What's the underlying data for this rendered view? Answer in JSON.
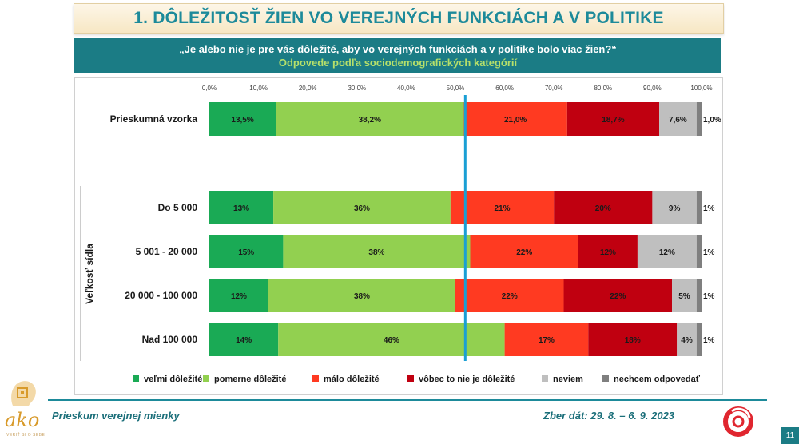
{
  "header": {
    "title": "1. DÔLEŽITOSŤ ŽIEN VO VEREJNÝCH FUNKCIÁCH A V POLITIKE",
    "question": "„Je alebo nie je pre vás dôležité, aby vo verejných funkciách a v politike bolo viac žien?“",
    "subtitle": "Odpovede podľa sociodemografických kategórií"
  },
  "footer": {
    "left": "Prieskum verejnej mienky",
    "right": "Zber dát: 29. 8. – 6. 9. 2023",
    "page": "11",
    "logo_text": "ako",
    "logo_sub": "VERIŤ SI O SEBE"
  },
  "colors": {
    "teal": "#1b7c85",
    "marker": "#1a9fd4"
  },
  "chart_data": {
    "type": "bar",
    "orientation": "horizontal",
    "stacked": true,
    "xlim": [
      0,
      100
    ],
    "x_ticks": [
      "0,0%",
      "10,0%",
      "20,0%",
      "30,0%",
      "40,0%",
      "50,0%",
      "60,0%",
      "70,0%",
      "80,0%",
      "90,0%",
      "100,0%"
    ],
    "group_label": "Veľkosť sídla",
    "reference_line": 52,
    "categories": [
      "Prieskumná vzorka",
      "Do 5 000",
      "5 001 - 20 000",
      "20 000 - 100 000",
      "Nad 100 000"
    ],
    "series": [
      {
        "name": "veľmi dôležité",
        "color": "#1aaa55",
        "values": [
          13.5,
          13,
          15,
          12,
          14
        ],
        "labels": [
          "13,5%",
          "13%",
          "15%",
          "12%",
          "14%"
        ]
      },
      {
        "name": "pomerne dôležité",
        "color": "#92d050",
        "values": [
          38.2,
          36,
          38,
          38,
          46
        ],
        "labels": [
          "38,2%",
          "36%",
          "38%",
          "38%",
          "46%"
        ]
      },
      {
        "name": "málo dôležité",
        "color": "#ff3a21",
        "values": [
          21.0,
          21,
          22,
          22,
          17
        ],
        "labels": [
          "21,0%",
          "21%",
          "22%",
          "22%",
          "17%"
        ]
      },
      {
        "name": "vôbec to nie je dôležité",
        "color": "#c00010",
        "values": [
          18.7,
          20,
          12,
          22,
          18
        ],
        "labels": [
          "18,7%",
          "20%",
          "12%",
          "22%",
          "18%"
        ]
      },
      {
        "name": "neviem",
        "color": "#bfbfbf",
        "values": [
          7.6,
          9,
          12,
          5,
          4
        ],
        "labels": [
          "7,6%",
          "9%",
          "12%",
          "5%",
          "4%"
        ]
      },
      {
        "name": "nechcem odpovedať",
        "color": "#7f7f7f",
        "values": [
          1.0,
          1,
          1,
          1,
          1
        ],
        "labels": [
          "1,0%",
          "1%",
          "1%",
          "1%",
          "1%"
        ]
      }
    ]
  }
}
